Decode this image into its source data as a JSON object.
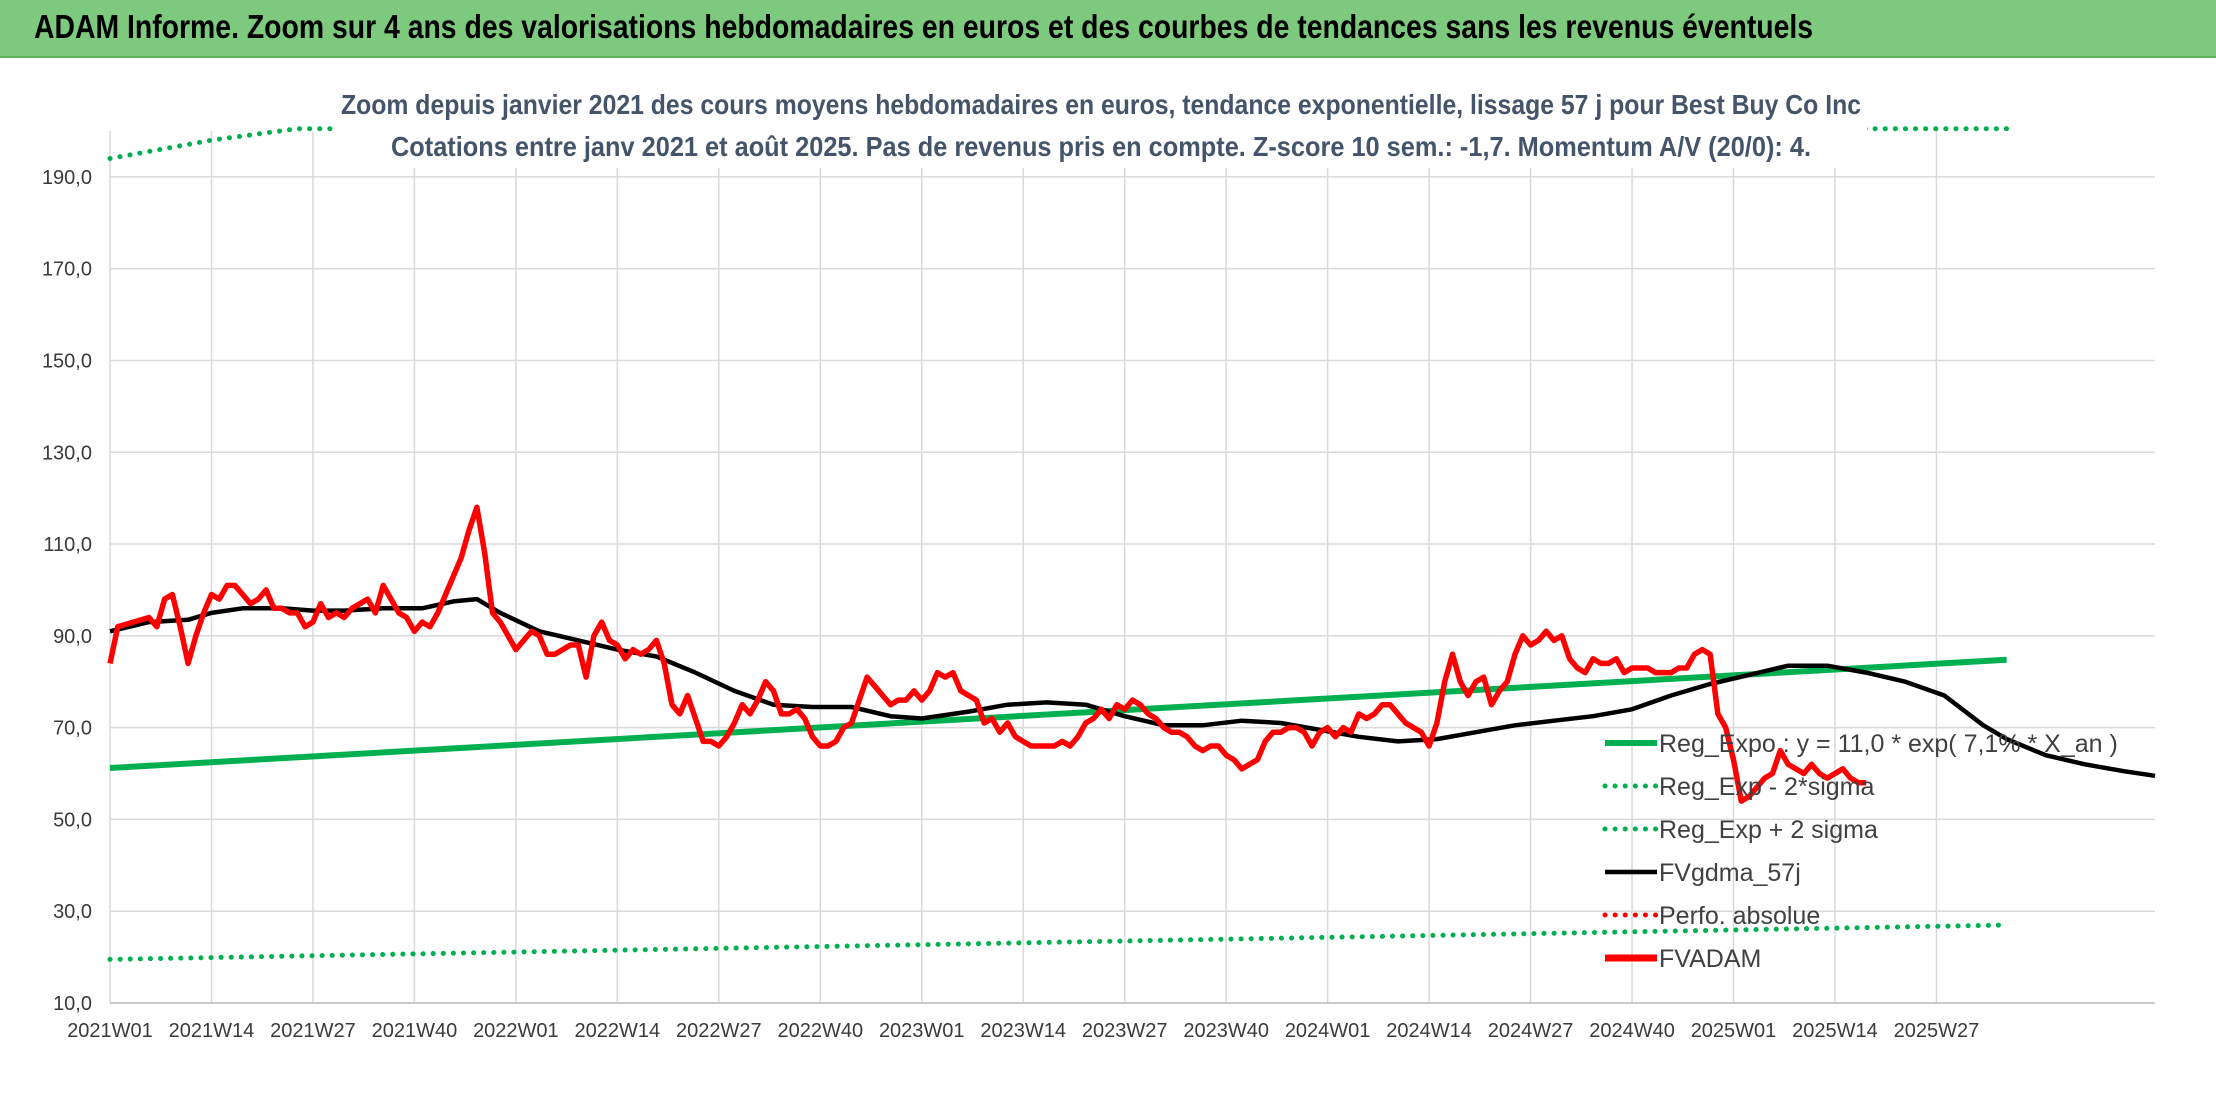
{
  "banner": {
    "title": "ADAM Informe. Zoom sur 4 ans des valorisations hebdomadaires en euros et des courbes de tendances sans les revenus éventuels"
  },
  "colors": {
    "banner": "#7dc97d",
    "green": "#00b050",
    "black": "#000000",
    "red": "#ff0000",
    "title": "#44546a",
    "grid": "#d9d9d9"
  },
  "chart_data": {
    "type": "line",
    "title_line1": "Zoom depuis janvier 2021 des cours moyens hebdomadaires en euros, tendance exponentielle, lissage 57 j pour Best Buy Co Inc",
    "title_line2": "Cotations entre janv 2021 et août 2025. Pas de revenus pris en compte. Z-score 10 sem.: -1,7. Momentum A/V (20/0): 4.",
    "xlabel": "",
    "ylabel": "",
    "ylim": [
      10,
      200
    ],
    "y_ticks": [
      10,
      30,
      50,
      70,
      90,
      110,
      130,
      150,
      170,
      190
    ],
    "y_tick_labels": [
      "10,0",
      "30,0",
      "50,0",
      "70,0",
      "90,0",
      "110,0",
      "130,0",
      "150,0",
      "170,0",
      "190,0"
    ],
    "x_ticks": [
      "2021W01",
      "2021W14",
      "2021W27",
      "2021W40",
      "2022W01",
      "2022W14",
      "2022W27",
      "2022W40",
      "2023W01",
      "2023W14",
      "2023W27",
      "2023W40",
      "2024W01",
      "2024W14",
      "2024W27",
      "2024W40",
      "2025W01",
      "2025W14",
      "2025W27"
    ],
    "grid": true,
    "legend_position": "bottom-right",
    "series": [
      {
        "name": "Reg_Expo : y = 11,0 * exp( 7,1% * X_an )",
        "color": "#00b050",
        "style": "solid",
        "points": [
          [
            0,
            61.2
          ],
          [
            243,
            84.8
          ]
        ]
      },
      {
        "name": "Reg_Exp - 2*sigma",
        "color": "#00b050",
        "style": "dotted",
        "points": [
          [
            0,
            19.5
          ],
          [
            243,
            27.0
          ]
        ]
      },
      {
        "name": "Reg_Exp + 2 sigma",
        "color": "#00b050",
        "style": "dotted",
        "points": [
          [
            0,
            194.0
          ],
          [
            13,
            198.0
          ],
          [
            24,
            200.5
          ],
          [
            243,
            200.5
          ]
        ]
      },
      {
        "name": "FVgdma_57j",
        "color": "#000000",
        "style": "solid",
        "points": [
          [
            0,
            91
          ],
          [
            5,
            93
          ],
          [
            10,
            93.5
          ],
          [
            13,
            95
          ],
          [
            17,
            96
          ],
          [
            22,
            96
          ],
          [
            26,
            95.5
          ],
          [
            30,
            95.5
          ],
          [
            35,
            96
          ],
          [
            40,
            96
          ],
          [
            44,
            97.5
          ],
          [
            47,
            98
          ],
          [
            50,
            95
          ],
          [
            55,
            91
          ],
          [
            60,
            89
          ],
          [
            65,
            87
          ],
          [
            70,
            85.5
          ],
          [
            75,
            82
          ],
          [
            80,
            78
          ],
          [
            85,
            75
          ],
          [
            90,
            74.5
          ],
          [
            95,
            74.5
          ],
          [
            100,
            72.5
          ],
          [
            104,
            72
          ],
          [
            110,
            73.5
          ],
          [
            115,
            75
          ],
          [
            120,
            75.5
          ],
          [
            125,
            75
          ],
          [
            130,
            72.5
          ],
          [
            135,
            70.5
          ],
          [
            140,
            70.5
          ],
          [
            145,
            71.5
          ],
          [
            150,
            71
          ],
          [
            155,
            69.5
          ],
          [
            160,
            68
          ],
          [
            165,
            67
          ],
          [
            170,
            67.5
          ],
          [
            175,
            69
          ],
          [
            180,
            70.5
          ],
          [
            185,
            71.5
          ],
          [
            190,
            72.5
          ],
          [
            195,
            74
          ],
          [
            200,
            77
          ],
          [
            205,
            79.5
          ],
          [
            210,
            81.5
          ],
          [
            215,
            83.5
          ],
          [
            220,
            83.5
          ],
          [
            225,
            82
          ],
          [
            230,
            80
          ],
          [
            235,
            77
          ],
          [
            240,
            70.5
          ],
          [
            243,
            67.5
          ],
          [
            248,
            64
          ],
          [
            253,
            62
          ],
          [
            258,
            60.5
          ],
          [
            262,
            59.5
          ]
        ]
      },
      {
        "name": "Perfo. absolue",
        "color": "#ff0000",
        "style": "dotted",
        "points": []
      },
      {
        "name": "FVADAM",
        "color": "#ff0000",
        "style": "solid-thick",
        "points": [
          [
            0,
            84
          ],
          [
            1,
            92
          ],
          [
            3,
            93
          ],
          [
            5,
            94
          ],
          [
            6,
            92
          ],
          [
            7,
            98
          ],
          [
            8,
            99
          ],
          [
            9,
            92
          ],
          [
            10,
            84
          ],
          [
            11,
            90
          ],
          [
            12,
            95
          ],
          [
            13,
            99
          ],
          [
            14,
            98
          ],
          [
            15,
            101
          ],
          [
            16,
            101
          ],
          [
            17,
            99
          ],
          [
            18,
            97
          ],
          [
            19,
            98
          ],
          [
            20,
            100
          ],
          [
            21,
            96
          ],
          [
            22,
            96
          ],
          [
            23,
            95
          ],
          [
            24,
            95
          ],
          [
            25,
            92
          ],
          [
            26,
            93
          ],
          [
            27,
            97
          ],
          [
            28,
            94
          ],
          [
            29,
            95
          ],
          [
            30,
            94
          ],
          [
            31,
            96
          ],
          [
            32,
            97
          ],
          [
            33,
            98
          ],
          [
            34,
            95
          ],
          [
            35,
            101
          ],
          [
            36,
            98
          ],
          [
            37,
            95
          ],
          [
            38,
            94
          ],
          [
            39,
            91
          ],
          [
            40,
            93
          ],
          [
            41,
            92
          ],
          [
            42,
            95
          ],
          [
            43,
            99
          ],
          [
            44,
            103
          ],
          [
            45,
            107
          ],
          [
            46,
            113
          ],
          [
            47,
            118
          ],
          [
            48,
            108
          ],
          [
            49,
            95
          ],
          [
            50,
            93
          ],
          [
            51,
            90
          ],
          [
            52,
            87
          ],
          [
            53,
            89
          ],
          [
            54,
            91
          ],
          [
            55,
            90
          ],
          [
            56,
            86
          ],
          [
            57,
            86
          ],
          [
            58,
            87
          ],
          [
            59,
            88
          ],
          [
            60,
            88
          ],
          [
            61,
            81
          ],
          [
            62,
            90
          ],
          [
            63,
            93
          ],
          [
            64,
            89
          ],
          [
            65,
            88
          ],
          [
            66,
            85
          ],
          [
            67,
            87
          ],
          [
            68,
            86
          ],
          [
            69,
            87
          ],
          [
            70,
            89
          ],
          [
            71,
            84
          ],
          [
            72,
            75
          ],
          [
            73,
            73
          ],
          [
            74,
            77
          ],
          [
            75,
            72
          ],
          [
            76,
            67
          ],
          [
            77,
            67
          ],
          [
            78,
            66
          ],
          [
            79,
            68
          ],
          [
            80,
            71
          ],
          [
            81,
            75
          ],
          [
            82,
            73
          ],
          [
            83,
            76
          ],
          [
            84,
            80
          ],
          [
            85,
            78
          ],
          [
            86,
            73
          ],
          [
            87,
            73
          ],
          [
            88,
            74
          ],
          [
            89,
            72
          ],
          [
            90,
            68
          ],
          [
            91,
            66
          ],
          [
            92,
            66
          ],
          [
            93,
            67
          ],
          [
            94,
            70
          ],
          [
            95,
            71
          ],
          [
            96,
            76
          ],
          [
            97,
            81
          ],
          [
            98,
            79
          ],
          [
            99,
            77
          ],
          [
            100,
            75
          ],
          [
            101,
            76
          ],
          [
            102,
            76
          ],
          [
            103,
            78
          ],
          [
            104,
            76
          ],
          [
            105,
            78
          ],
          [
            106,
            82
          ],
          [
            107,
            81
          ],
          [
            108,
            82
          ],
          [
            109,
            78
          ],
          [
            110,
            77
          ],
          [
            111,
            76
          ],
          [
            112,
            71
          ],
          [
            113,
            72
          ],
          [
            114,
            69
          ],
          [
            115,
            71
          ],
          [
            116,
            68
          ],
          [
            117,
            67
          ],
          [
            118,
            66
          ],
          [
            119,
            66
          ],
          [
            120,
            66
          ],
          [
            121,
            66
          ],
          [
            122,
            67
          ],
          [
            123,
            66
          ],
          [
            124,
            68
          ],
          [
            125,
            71
          ],
          [
            126,
            72
          ],
          [
            127,
            74
          ],
          [
            128,
            72
          ],
          [
            129,
            75
          ],
          [
            130,
            74
          ],
          [
            131,
            76
          ],
          [
            132,
            75
          ],
          [
            133,
            73
          ],
          [
            134,
            72
          ],
          [
            135,
            70
          ],
          [
            136,
            69
          ],
          [
            137,
            69
          ],
          [
            138,
            68
          ],
          [
            139,
            66
          ],
          [
            140,
            65
          ],
          [
            141,
            66
          ],
          [
            142,
            66
          ],
          [
            143,
            64
          ],
          [
            144,
            63
          ],
          [
            145,
            61
          ],
          [
            146,
            62
          ],
          [
            147,
            63
          ],
          [
            148,
            67
          ],
          [
            149,
            69
          ],
          [
            150,
            69
          ],
          [
            151,
            70
          ],
          [
            152,
            70
          ],
          [
            153,
            69
          ],
          [
            154,
            66
          ],
          [
            155,
            69
          ],
          [
            156,
            70
          ],
          [
            157,
            68
          ],
          [
            158,
            70
          ],
          [
            159,
            69
          ],
          [
            160,
            73
          ],
          [
            161,
            72
          ],
          [
            162,
            73
          ],
          [
            163,
            75
          ],
          [
            164,
            75
          ],
          [
            165,
            73
          ],
          [
            166,
            71
          ],
          [
            167,
            70
          ],
          [
            168,
            69
          ],
          [
            169,
            66
          ],
          [
            170,
            71
          ],
          [
            171,
            80
          ],
          [
            172,
            86
          ],
          [
            173,
            80
          ],
          [
            174,
            77
          ],
          [
            175,
            80
          ],
          [
            176,
            81
          ],
          [
            177,
            75
          ],
          [
            178,
            78
          ],
          [
            179,
            80
          ],
          [
            180,
            86
          ],
          [
            181,
            90
          ],
          [
            182,
            88
          ],
          [
            183,
            89
          ],
          [
            184,
            91
          ],
          [
            185,
            89
          ],
          [
            186,
            90
          ],
          [
            187,
            85
          ],
          [
            188,
            83
          ],
          [
            189,
            82
          ],
          [
            190,
            85
          ],
          [
            191,
            84
          ],
          [
            192,
            84
          ],
          [
            193,
            85
          ],
          [
            194,
            82
          ],
          [
            195,
            83
          ],
          [
            196,
            83
          ],
          [
            197,
            83
          ],
          [
            198,
            82
          ],
          [
            199,
            82
          ],
          [
            200,
            82
          ],
          [
            201,
            83
          ],
          [
            202,
            83
          ],
          [
            203,
            86
          ],
          [
            204,
            87
          ],
          [
            205,
            86
          ],
          [
            206,
            73
          ],
          [
            207,
            70
          ],
          [
            208,
            63
          ],
          [
            209,
            54
          ],
          [
            210,
            55
          ],
          [
            211,
            57
          ],
          [
            212,
            59
          ],
          [
            213,
            60
          ],
          [
            214,
            65
          ],
          [
            215,
            62
          ],
          [
            216,
            61
          ],
          [
            217,
            60
          ],
          [
            218,
            62
          ],
          [
            219,
            60
          ],
          [
            220,
            59
          ],
          [
            221,
            60
          ],
          [
            222,
            61
          ],
          [
            223,
            59
          ],
          [
            224,
            58
          ],
          [
            225,
            58
          ]
        ]
      }
    ]
  }
}
